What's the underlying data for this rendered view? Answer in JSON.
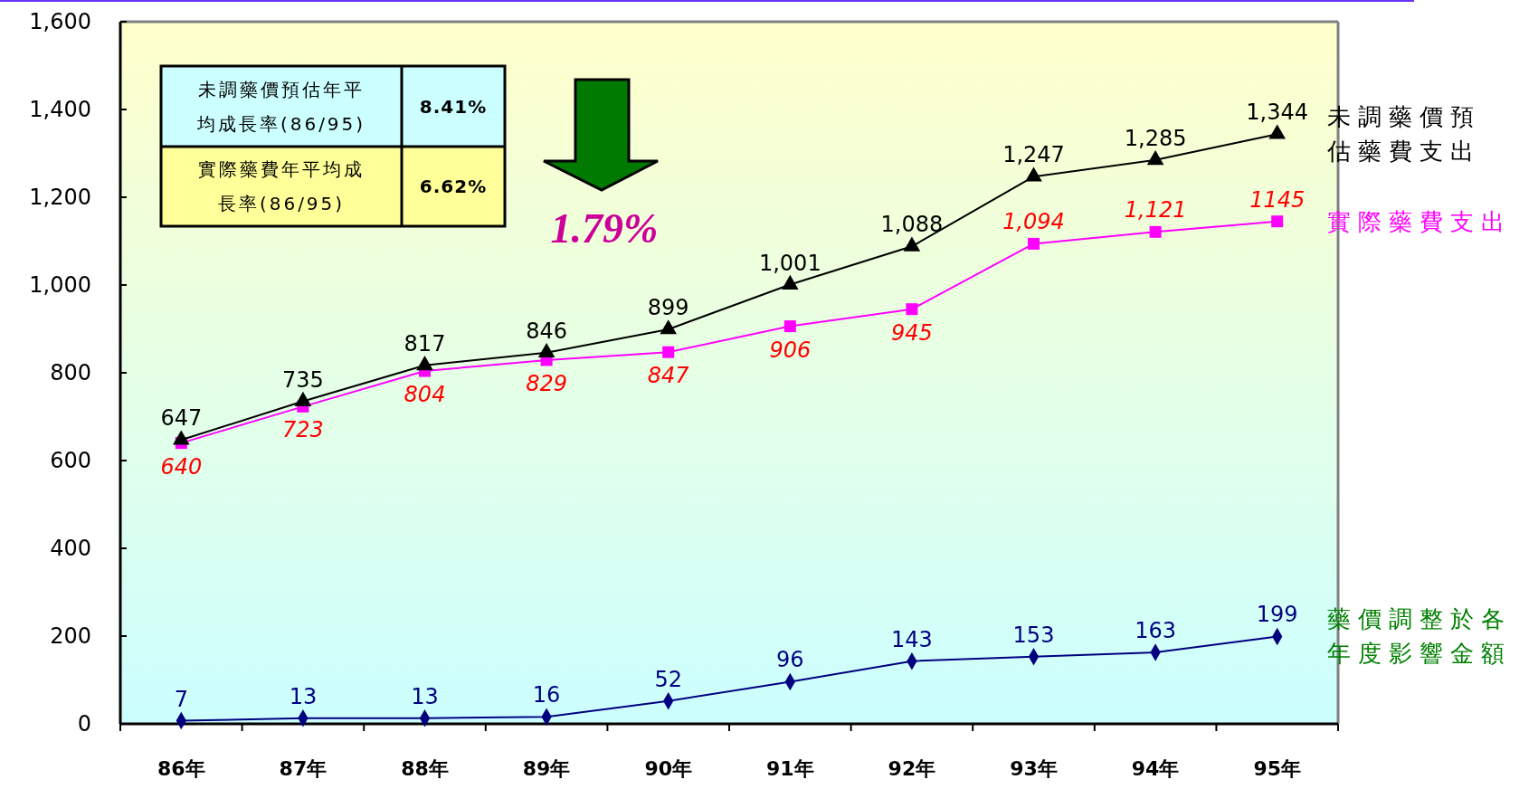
{
  "chart_data": {
    "type": "line",
    "categories": [
      "86年",
      "87年",
      "88年",
      "89年",
      "90年",
      "91年",
      "92年",
      "93年",
      "94年",
      "95年"
    ],
    "series": [
      {
        "name": "未調藥價預估藥費支出",
        "color": "#000000",
        "marker": "triangle",
        "values": [
          647,
          735,
          817,
          846,
          899,
          1001,
          1088,
          1247,
          1285,
          1344
        ],
        "value_labels": [
          "647",
          "735",
          "817",
          "846",
          "899",
          "1,001",
          "1,088",
          "1,247",
          "1,285",
          "1,344"
        ]
      },
      {
        "name": "實際藥費支出",
        "color": "#ff00ff",
        "marker": "square",
        "values": [
          640,
          723,
          804,
          829,
          847,
          906,
          945,
          1094,
          1121,
          1145
        ],
        "value_labels": [
          "640",
          "723",
          "804",
          "829",
          "847",
          "906",
          "945",
          "1,094",
          "1,121",
          "1145"
        ]
      },
      {
        "name": "藥價調整於各年度影響金額",
        "color": "#000080",
        "marker": "diamond",
        "values": [
          7,
          13,
          13,
          16,
          52,
          96,
          143,
          153,
          163,
          199
        ],
        "value_labels": [
          "7",
          "13",
          "13",
          "16",
          "52",
          "96",
          "143",
          "153",
          "163",
          "199"
        ]
      }
    ],
    "ylim": [
      0,
      1600
    ],
    "yticks": [
      0,
      200,
      400,
      600,
      800,
      {
        "value": 1000,
        "label": "1,000"
      },
      {
        "value": 1200,
        "label": "1,200"
      },
      {
        "value": 1400,
        "label": "1,400"
      },
      {
        "value": 1600,
        "label": "1,600"
      }
    ],
    "annotations": [
      "未調藥價預估年平均成長率(86/95)",
      "8.41%",
      "實際藥費年平均成長率(86/95)",
      "6.62%",
      "1.79%"
    ]
  }
}
